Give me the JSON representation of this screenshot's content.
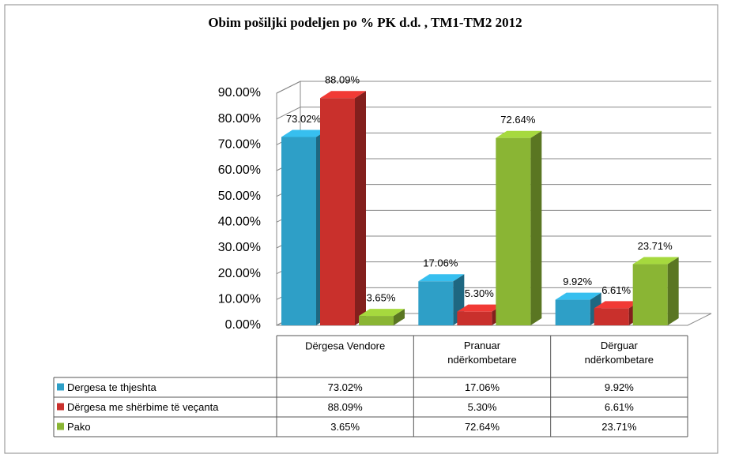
{
  "chart_data": {
    "type": "bar3d",
    "title": "Obim pošiljki podeljen po  % PK d.d. , TM1-TM2 2012",
    "categories": [
      "Dërgesa Vendore",
      "Pranuar ndërkombetare",
      "Dërguar ndërkombetare"
    ],
    "series": [
      {
        "name": "Dergesa te thjeshta",
        "color": "#2e9fc7",
        "values": [
          73.02,
          17.06,
          9.92
        ],
        "value_labels": [
          "73.02%",
          "17.06%",
          "9.92%"
        ]
      },
      {
        "name": "Dërgesa me shërbime të veçanta",
        "color": "#c9302c",
        "values": [
          88.09,
          5.3,
          6.61
        ],
        "value_labels": [
          "88.09%",
          "5.30%",
          "6.61%"
        ]
      },
      {
        "name": "Pako",
        "color": "#8ab534",
        "values": [
          3.65,
          72.64,
          23.71
        ],
        "value_labels": [
          "3.65%",
          "72.64%",
          "23.71%"
        ]
      }
    ],
    "ylim": [
      0,
      90
    ],
    "yticks": [
      {
        "value": 0,
        "label": "0.00%"
      },
      {
        "value": 10,
        "label": "10.00%"
      },
      {
        "value": 20,
        "label": "20.00%"
      },
      {
        "value": 30,
        "label": "30.00%"
      },
      {
        "value": 40,
        "label": "40.00%"
      },
      {
        "value": 50,
        "label": "50.00%"
      },
      {
        "value": 60,
        "label": "60.00%"
      },
      {
        "value": 70,
        "label": "70.00%"
      },
      {
        "value": 80,
        "label": "80.00%"
      },
      {
        "value": 90,
        "label": "90.00%"
      }
    ],
    "grid": true
  }
}
